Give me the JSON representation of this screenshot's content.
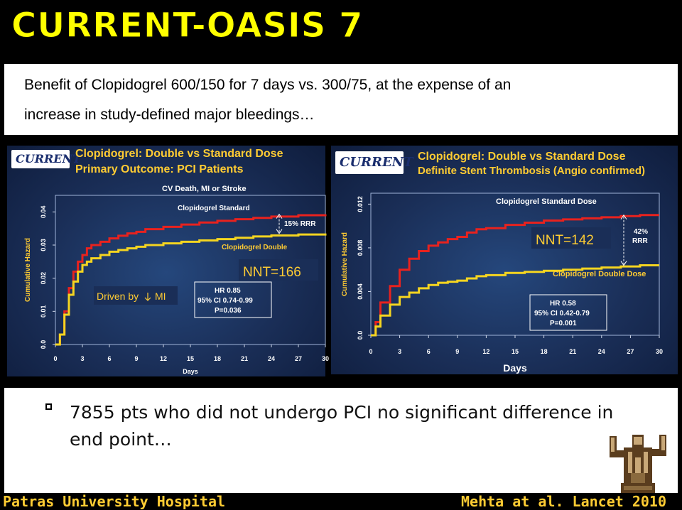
{
  "slide": {
    "title": "CURRENT-OASIS 7",
    "intro_line_1": "Benefit of Clopidogrel 600/150 for 7 days vs. 300/75, at the expense of an",
    "intro_line_2": "increase in study-defined major bleedings…",
    "bullet_line_1": "7855 pts who did not undergo PCI no significant difference in",
    "bullet_line_2": "end point…",
    "footer_left": "Patras University Hospital",
    "footer_right": "Mehta at al. Lancet 2010"
  },
  "colors": {
    "title": "#ffff00",
    "heading": "#ffcc33",
    "standard_dose": "#e8221e",
    "double_dose": "#f5d520",
    "panel_bg": "#1a2e57"
  },
  "chart_data": [
    {
      "type": "line",
      "logo": "CURRENT",
      "title": "Clopidogrel: Double vs Standard Dose",
      "subtitle": "Primary Outcome: PCI Patients",
      "plot_title": "CV Death, MI or Stroke",
      "xlabel": "Days",
      "ylabel": "Cumulative Hazard",
      "xlim": [
        0,
        30
      ],
      "ylim": [
        0,
        0.045
      ],
      "xticks": [
        "0",
        "3",
        "6",
        "9",
        "12",
        "15",
        "18",
        "21",
        "24",
        "27",
        "30"
      ],
      "yticks": [
        "0.0",
        "0.01",
        "0.02",
        "0.03",
        "0.04"
      ],
      "series": [
        {
          "name": "Clopidogrel Standard",
          "color": "#e8221e",
          "x": [
            0,
            0.5,
            1,
            1.5,
            2,
            2.5,
            3,
            3.5,
            4,
            5,
            6,
            7,
            8,
            9,
            10,
            12,
            14,
            16,
            18,
            20,
            22,
            24,
            27,
            30
          ],
          "y": [
            0,
            0.003,
            0.01,
            0.017,
            0.022,
            0.025,
            0.027,
            0.029,
            0.03,
            0.031,
            0.032,
            0.0328,
            0.0335,
            0.034,
            0.0348,
            0.0355,
            0.0362,
            0.0368,
            0.0373,
            0.0378,
            0.0382,
            0.0386,
            0.039,
            0.0393
          ]
        },
        {
          "name": "Clopidogrel Double",
          "color": "#f5d520",
          "x": [
            0,
            0.5,
            1,
            1.5,
            2,
            2.5,
            3,
            3.5,
            4,
            5,
            6,
            7,
            8,
            9,
            10,
            12,
            14,
            16,
            18,
            20,
            22,
            24,
            27,
            30
          ],
          "y": [
            0,
            0.003,
            0.009,
            0.015,
            0.019,
            0.022,
            0.024,
            0.025,
            0.026,
            0.027,
            0.028,
            0.0285,
            0.029,
            0.0295,
            0.03,
            0.0305,
            0.031,
            0.0314,
            0.0318,
            0.0322,
            0.0326,
            0.0329,
            0.0332,
            0.0335
          ]
        }
      ],
      "annotations": {
        "rrr": "15% RRR",
        "nnt": "NNT=166",
        "driven_by_prefix": "Driven by",
        "driven_by_suffix": "MI",
        "hr": "HR 0.85",
        "ci": "95% CI 0.74-0.99",
        "p": "P=0.036"
      }
    },
    {
      "type": "line",
      "logo": "CURRENT",
      "title": "Clopidogrel: Double vs Standard Dose",
      "subtitle": "Definite Stent Thrombosis (Angio confirmed)",
      "xlabel": "Days",
      "ylabel": "Cumulative Hazard",
      "xlim": [
        0,
        30
      ],
      "ylim": [
        0,
        0.013
      ],
      "xticks": [
        "0",
        "3",
        "6",
        "9",
        "12",
        "15",
        "18",
        "21",
        "24",
        "27",
        "30"
      ],
      "yticks": [
        "0.0",
        "0.004",
        "0.008",
        "0.012"
      ],
      "series": [
        {
          "name": "Clopidogrel Standard Dose",
          "color": "#e8221e",
          "x": [
            0,
            0.5,
            1,
            2,
            3,
            4,
            5,
            6,
            7,
            8,
            9,
            10,
            11,
            12,
            14,
            16,
            18,
            20,
            22,
            24,
            26,
            28,
            30
          ],
          "y": [
            0,
            0.0012,
            0.003,
            0.0045,
            0.006,
            0.007,
            0.0077,
            0.0082,
            0.0085,
            0.0088,
            0.009,
            0.0094,
            0.0097,
            0.0098,
            0.0101,
            0.0103,
            0.0105,
            0.0106,
            0.0107,
            0.0108,
            0.0109,
            0.011,
            0.011
          ]
        },
        {
          "name": "Clopidogrel Double Dose",
          "color": "#f5d520",
          "x": [
            0,
            0.5,
            1,
            2,
            3,
            4,
            5,
            6,
            7,
            8,
            9,
            10,
            11,
            12,
            14,
            16,
            18,
            20,
            22,
            24,
            26,
            28,
            30
          ],
          "y": [
            0,
            0.0008,
            0.0018,
            0.0028,
            0.0035,
            0.0039,
            0.0043,
            0.0046,
            0.0048,
            0.0049,
            0.005,
            0.0052,
            0.0054,
            0.0055,
            0.0057,
            0.0058,
            0.0059,
            0.006,
            0.0061,
            0.0062,
            0.0063,
            0.0064,
            0.0064
          ]
        }
      ],
      "annotations": {
        "rrr_1": "42%",
        "rrr_2": "RRR",
        "nnt": "NNT=142",
        "hr": "HR 0.58",
        "ci": "95% CI 0.42-0.79",
        "p": "P=0.001"
      }
    }
  ]
}
